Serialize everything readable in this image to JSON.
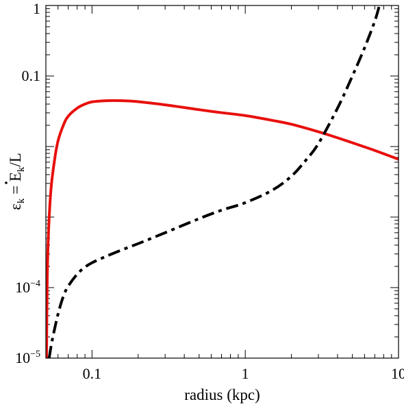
{
  "chart_data": {
    "type": "line",
    "title": "",
    "xlabel": "radius (kpc)",
    "ylabel": {
      "symbol": "ε",
      "subscript": "k",
      "equals": " = ",
      "numerator_symbol": "E",
      "numerator_subscript": "k",
      "denominator": "/L"
    },
    "xscale": "log",
    "yscale": "log",
    "xlim": [
      0.05,
      10
    ],
    "ylim": [
      1e-05,
      1
    ],
    "x_ticks": [
      {
        "value": 0.1,
        "label": "0.1"
      },
      {
        "value": 1,
        "label": "1"
      },
      {
        "value": 10,
        "label": "10"
      }
    ],
    "y_ticks": [
      {
        "value": 1e-05,
        "base": "10",
        "exponent": "−5"
      },
      {
        "value": 0.0001,
        "base": "10",
        "exponent": "−4"
      },
      {
        "value": 0.1,
        "label": "0.1"
      },
      {
        "value": 1,
        "label": "1"
      }
    ],
    "grid": false,
    "series": [
      {
        "color": "#e8100c",
        "style": "solid",
        "points": [
          [
            0.0505,
            1e-05
          ],
          [
            0.051,
            0.00012
          ],
          [
            0.052,
            0.0006
          ],
          [
            0.054,
            0.0025
          ],
          [
            0.057,
            0.0065
          ],
          [
            0.06,
            0.012
          ],
          [
            0.065,
            0.02
          ],
          [
            0.07,
            0.027
          ],
          [
            0.08,
            0.035
          ],
          [
            0.09,
            0.04
          ],
          [
            0.1,
            0.043
          ],
          [
            0.12,
            0.0445
          ],
          [
            0.14,
            0.0448
          ],
          [
            0.17,
            0.0443
          ],
          [
            0.2,
            0.0432
          ],
          [
            0.3,
            0.039
          ],
          [
            0.5,
            0.0333
          ],
          [
            0.7,
            0.0302
          ],
          [
            1.0,
            0.0275
          ],
          [
            1.5,
            0.0235
          ],
          [
            2.0,
            0.0207
          ],
          [
            3.0,
            0.0162
          ],
          [
            4.0,
            0.0133
          ],
          [
            5.0,
            0.0113
          ],
          [
            7.0,
            0.0088
          ],
          [
            10.0,
            0.0066
          ]
        ]
      },
      {
        "color": "#000000",
        "style": "dashdot",
        "points": [
          [
            0.0525,
            1e-05
          ],
          [
            0.055,
            1.8e-05
          ],
          [
            0.06,
            4.2e-05
          ],
          [
            0.065,
            7.5e-05
          ],
          [
            0.07,
            0.000105
          ],
          [
            0.08,
            0.000155
          ],
          [
            0.09,
            0.000195
          ],
          [
            0.1,
            0.000225
          ],
          [
            0.12,
            0.00027
          ],
          [
            0.15,
            0.00033
          ],
          [
            0.2,
            0.00042
          ],
          [
            0.3,
            0.0006
          ],
          [
            0.5,
            0.00095
          ],
          [
            0.7,
            0.00125
          ],
          [
            1.0,
            0.0016
          ],
          [
            1.5,
            0.0024
          ],
          [
            2.0,
            0.0038
          ],
          [
            2.5,
            0.0065
          ],
          [
            3.0,
            0.011
          ],
          [
            4.0,
            0.035
          ],
          [
            5.0,
            0.1
          ],
          [
            6.0,
            0.25
          ],
          [
            7.0,
            0.6
          ],
          [
            7.5,
            1.0
          ]
        ]
      }
    ]
  }
}
